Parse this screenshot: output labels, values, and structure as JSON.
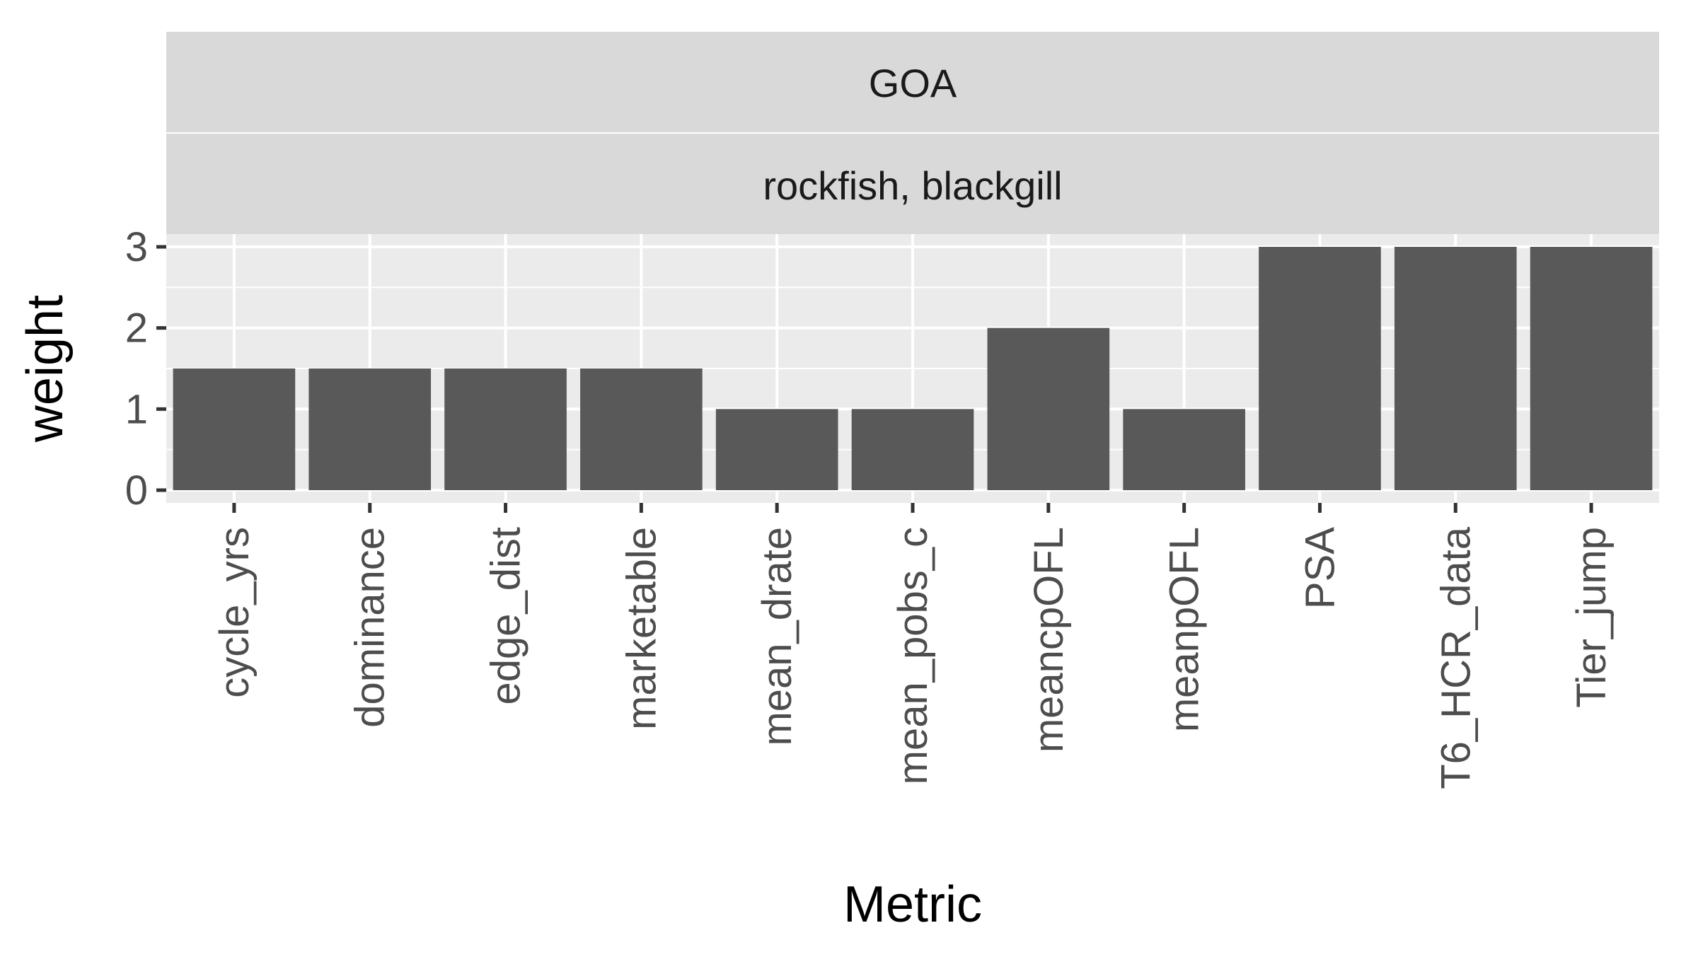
{
  "chart_data": {
    "type": "bar",
    "facet_strips": [
      "GOA",
      "rockfish, blackgill"
    ],
    "categories": [
      "cycle_yrs",
      "dominance",
      "edge_dist",
      "marketable",
      "mean_drate",
      "mean_pobs_c",
      "meancpOFL",
      "meanpOFL",
      "PSA",
      "T6_HCR_data",
      "Tier_jump"
    ],
    "values": [
      1.5,
      1.5,
      1.5,
      1.5,
      1,
      1,
      2,
      1,
      3,
      3,
      3
    ],
    "xlabel": "Metric",
    "ylabel": "weight",
    "ylim": [
      0,
      3
    ],
    "yticks": [
      0,
      1,
      2,
      3
    ],
    "grid": true,
    "legend": "none",
    "colors": {
      "bar": "#595959",
      "panel_background": "#ebebeb",
      "strip_background": "#d9d9d9",
      "grid": "#ffffff"
    }
  }
}
